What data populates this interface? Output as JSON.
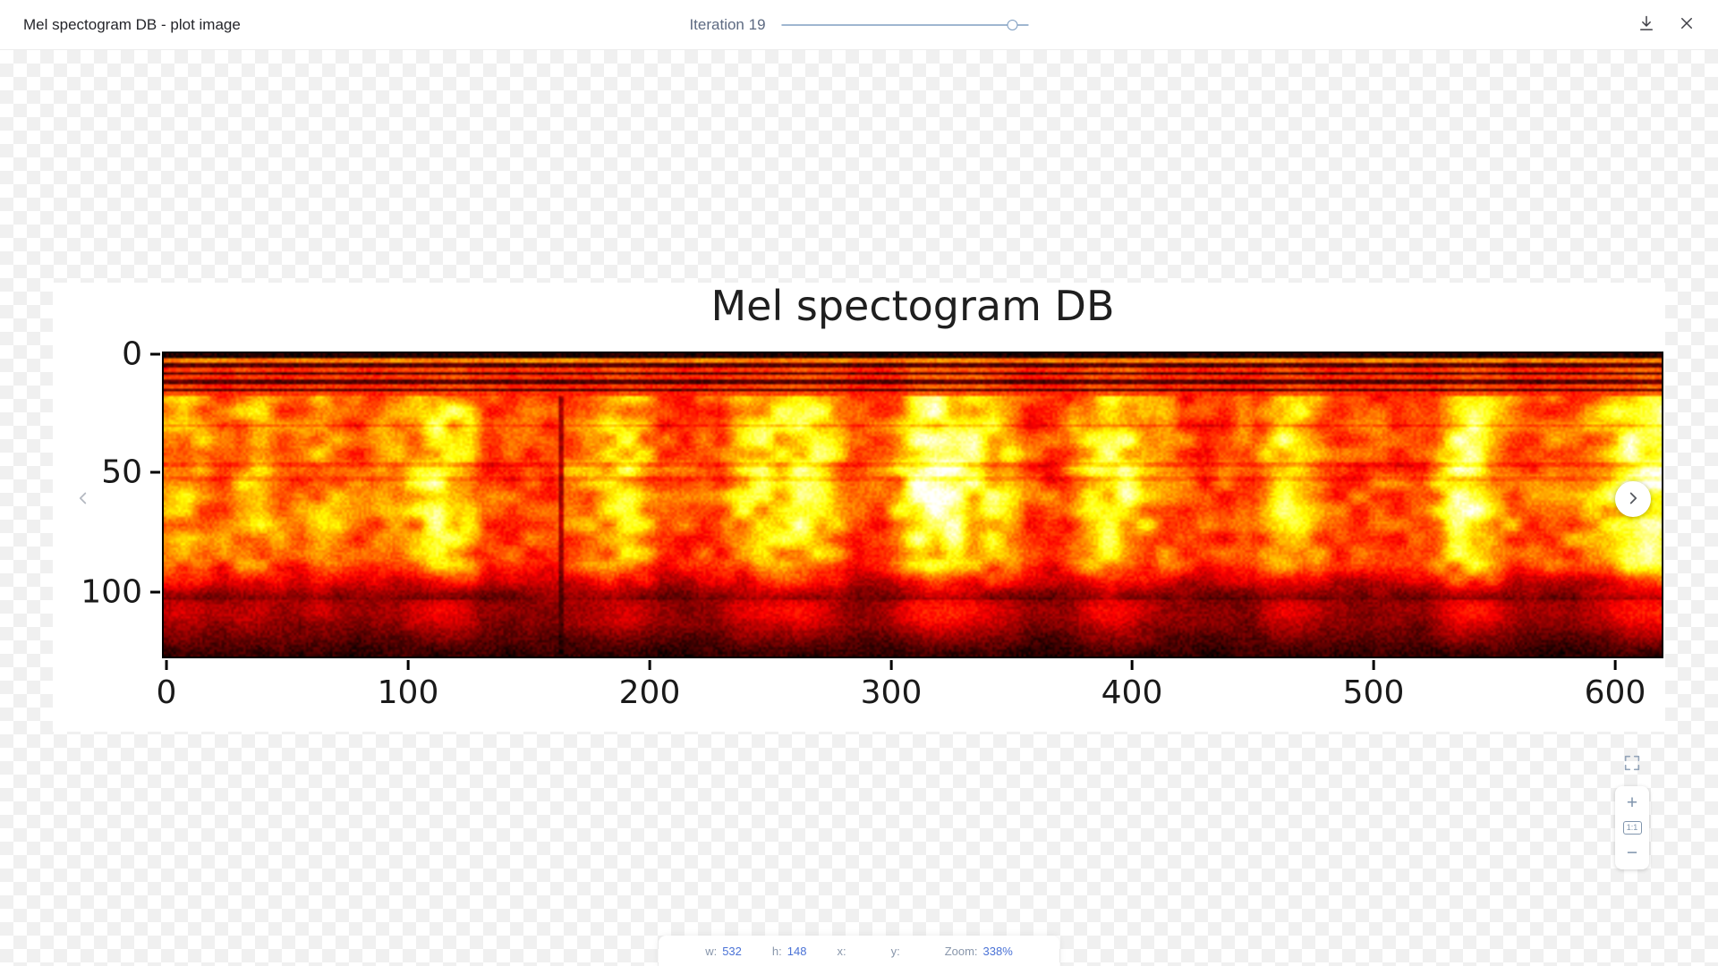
{
  "header": {
    "title": "Mel spectogram DB - plot image",
    "iteration_label": "Iteration",
    "iteration_value": "19"
  },
  "plot": {
    "title": "Mel spectogram DB",
    "colormap": "hot",
    "x_ticks": [
      "0",
      "100",
      "200",
      "300",
      "400",
      "500",
      "600"
    ],
    "y_ticks": [
      "0",
      "50",
      "100"
    ]
  },
  "zoom_controls": {
    "zoom_in": "+",
    "one_to_one": "1:1",
    "zoom_out": "−"
  },
  "status_bar": {
    "items": [
      {
        "label": "w:",
        "value": "532"
      },
      {
        "label": "h:",
        "value": "148"
      },
      {
        "label": "x:",
        "value": ""
      },
      {
        "label": "y:",
        "value": ""
      },
      {
        "label": "Zoom:",
        "value": "338%"
      }
    ]
  },
  "icons": {
    "download": "download-icon",
    "close": "close-icon",
    "prev": "chevron-left-icon",
    "next": "chevron-right-icon",
    "fit": "fit-to-screen-icon"
  },
  "colors": {
    "value_blue": "#4a72d6",
    "label_gray": "#8896ab",
    "slider_track": "#9fb6d0",
    "checker_gray": "#f0f0f0"
  }
}
